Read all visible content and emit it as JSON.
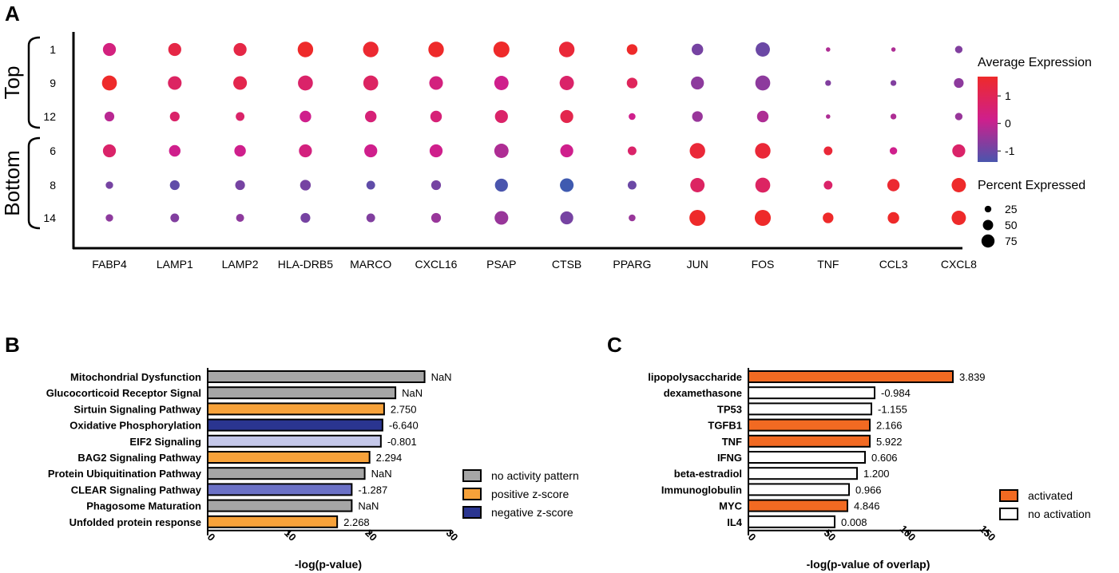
{
  "panel_labels": {
    "a": "A",
    "b": "B",
    "c": "C"
  },
  "colors": {
    "high": "#ee2a2a",
    "mid": "#cf1f8c",
    "low": "#4a55ad",
    "grey": "#a6a6a6",
    "orange": "#f7a23a",
    "blue_dark": "#2a3590",
    "blue_mid": "#6b71c6",
    "blue_light": "#c5c8ea",
    "orange_c": "#f26a22"
  },
  "chart_data": [
    {
      "type": "dotplot",
      "genes": [
        "FABP4",
        "LAMP1",
        "LAMP2",
        "HLA-DRB5",
        "MARCO",
        "CXCL16",
        "PSAP",
        "CTSB",
        "PPARG",
        "JUN",
        "FOS",
        "TNF",
        "CCL3",
        "CXCL8"
      ],
      "clusters": [
        "1",
        "9",
        "12",
        "6",
        "8",
        "14"
      ],
      "groups": [
        {
          "name": "Top",
          "clusters": [
            "1",
            "9",
            "12"
          ]
        },
        {
          "name": "Bottom",
          "clusters": [
            "6",
            "8",
            "14"
          ]
        }
      ],
      "avg_expression": [
        [
          0.2,
          1.0,
          1.0,
          1.4,
          1.3,
          1.6,
          1.7,
          1.2,
          1.4,
          -0.8,
          -0.9,
          -0.3,
          -0.3,
          -0.7
        ],
        [
          1.7,
          0.6,
          0.9,
          0.5,
          0.6,
          0.2,
          0.0,
          0.5,
          0.7,
          -0.6,
          -0.6,
          -0.7,
          -0.7,
          -0.6
        ],
        [
          -0.2,
          0.5,
          0.5,
          0.0,
          0.3,
          0.3,
          0.5,
          0.9,
          0.0,
          -0.5,
          -0.3,
          -0.3,
          -0.3,
          -0.5
        ],
        [
          0.5,
          0.0,
          0.0,
          0.2,
          0.0,
          0.0,
          -0.3,
          0.0,
          0.5,
          1.2,
          1.2,
          1.2,
          0.0,
          0.5
        ],
        [
          -0.8,
          -1.0,
          -0.8,
          -0.8,
          -1.0,
          -0.8,
          -1.2,
          -1.3,
          -0.9,
          0.6,
          0.6,
          0.5,
          1.3,
          1.4
        ],
        [
          -0.6,
          -0.7,
          -0.6,
          -0.8,
          -0.7,
          -0.5,
          -0.5,
          -0.8,
          -0.5,
          1.6,
          1.6,
          1.6,
          1.5,
          1.4
        ]
      ],
      "pct_expressed": [
        [
          40,
          40,
          40,
          60,
          60,
          60,
          65,
          60,
          25,
          30,
          50,
          2,
          2,
          10
        ],
        [
          55,
          45,
          45,
          55,
          55,
          45,
          50,
          50,
          25,
          40,
          55,
          5,
          5,
          20
        ],
        [
          20,
          20,
          15,
          30,
          30,
          30,
          40,
          40,
          8,
          25,
          30,
          2,
          5,
          10
        ],
        [
          40,
          30,
          30,
          40,
          40,
          40,
          50,
          40,
          15,
          60,
          60,
          15,
          10,
          40
        ],
        [
          10,
          20,
          20,
          25,
          15,
          20,
          40,
          45,
          15,
          50,
          55,
          15,
          35,
          50
        ],
        [
          10,
          15,
          12,
          20,
          15,
          20,
          45,
          40,
          8,
          65,
          65,
          25,
          30,
          50
        ]
      ],
      "legend_expression": {
        "title": "Average Expression",
        "ticks": [
          "1",
          "0",
          "-1"
        ]
      },
      "legend_percent": {
        "title": "Percent Expressed",
        "ticks": [
          "25",
          "50",
          "75"
        ]
      }
    },
    {
      "type": "bar",
      "orientation": "horizontal",
      "categories": [
        "Mitochondrial Dysfunction",
        "Glucocorticoid Receptor Signal",
        "Sirtuin Signaling Pathway",
        "Oxidative Phosphorylation",
        "EIF2 Signaling",
        "BAG2 Signaling Pathway",
        "Protein Ubiquitination Pathway",
        "CLEAR Signaling Pathway",
        "Phagosome Maturation",
        "Unfolded protein response"
      ],
      "values": [
        26.8,
        23.2,
        21.8,
        21.6,
        21.4,
        20.0,
        19.4,
        17.8,
        17.8,
        16.0
      ],
      "labels": [
        "NaN",
        "NaN",
        "2.750",
        "-6.640",
        "-0.801",
        "2.294",
        "NaN",
        "-1.287",
        "NaN",
        "2.268"
      ],
      "bar_colors": [
        "#a6a6a6",
        "#a6a6a6",
        "#f7a23a",
        "#2a3590",
        "#c5c8ea",
        "#f7a23a",
        "#a6a6a6",
        "#6b71c6",
        "#a6a6a6",
        "#f7a23a"
      ],
      "xlabel": "-log(p-value)",
      "xlim": [
        0,
        30
      ],
      "xticks": [
        "0",
        "10",
        "20",
        "30"
      ],
      "legend": [
        {
          "label": "no activity pattern",
          "color": "#a6a6a6"
        },
        {
          "label": "positive z-score",
          "color": "#f7a23a"
        },
        {
          "label": "negative z-score",
          "color": "#2a3590"
        }
      ]
    },
    {
      "type": "bar",
      "orientation": "horizontal",
      "categories": [
        "lipopolysaccharide",
        "dexamethasone",
        "TP53",
        "TGFB1",
        "TNF",
        "IFNG",
        "beta-estradiol",
        "Immunoglobulin",
        "MYC",
        "IL4"
      ],
      "values": [
        128,
        79,
        77,
        76,
        76,
        73,
        68,
        63,
        62,
        54
      ],
      "labels": [
        "3.839",
        "-0.984",
        "-1.155",
        "2.166",
        "5.922",
        "0.606",
        "1.200",
        "0.966",
        "4.846",
        "0.008"
      ],
      "bar_colors": [
        "#f26a22",
        "#ffffff",
        "#ffffff",
        "#f26a22",
        "#f26a22",
        "#ffffff",
        "#ffffff",
        "#ffffff",
        "#f26a22",
        "#ffffff"
      ],
      "xlabel": "-log(p-value of overlap)",
      "xlim": [
        0,
        150
      ],
      "xticks": [
        "0",
        "50",
        "100",
        "150"
      ],
      "legend": [
        {
          "label": "activated",
          "color": "#f26a22"
        },
        {
          "label": "no activation",
          "color": "#ffffff"
        }
      ]
    }
  ]
}
